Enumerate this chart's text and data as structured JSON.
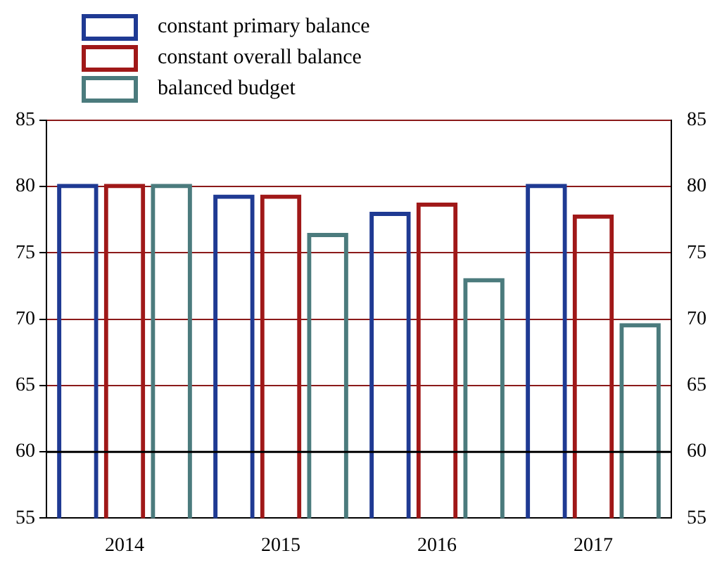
{
  "chart_data": {
    "type": "bar",
    "categories": [
      "2014",
      "2015",
      "2016",
      "2017"
    ],
    "series": [
      {
        "name": "constant primary balance",
        "color": "#1f3a93",
        "values": [
          80.2,
          79.4,
          78.1,
          80.2
        ]
      },
      {
        "name": "constant overall balance",
        "color": "#a01818",
        "values": [
          80.2,
          79.4,
          78.8,
          77.9
        ]
      },
      {
        "name": "balanced budget",
        "color": "#4b7b7d",
        "values": [
          80.2,
          76.5,
          73.1,
          69.7
        ]
      }
    ],
    "ylim": [
      55,
      85
    ],
    "yticks": [
      55,
      60,
      65,
      70,
      75,
      80,
      85
    ],
    "y2lim": [
      55,
      85
    ],
    "y2ticks": [
      55,
      60,
      65,
      70,
      75,
      80,
      85
    ],
    "grid": "y",
    "legend": "top left",
    "ref_lines": [
      {
        "axis": "y",
        "value": 60,
        "color": "#000000"
      }
    ]
  }
}
